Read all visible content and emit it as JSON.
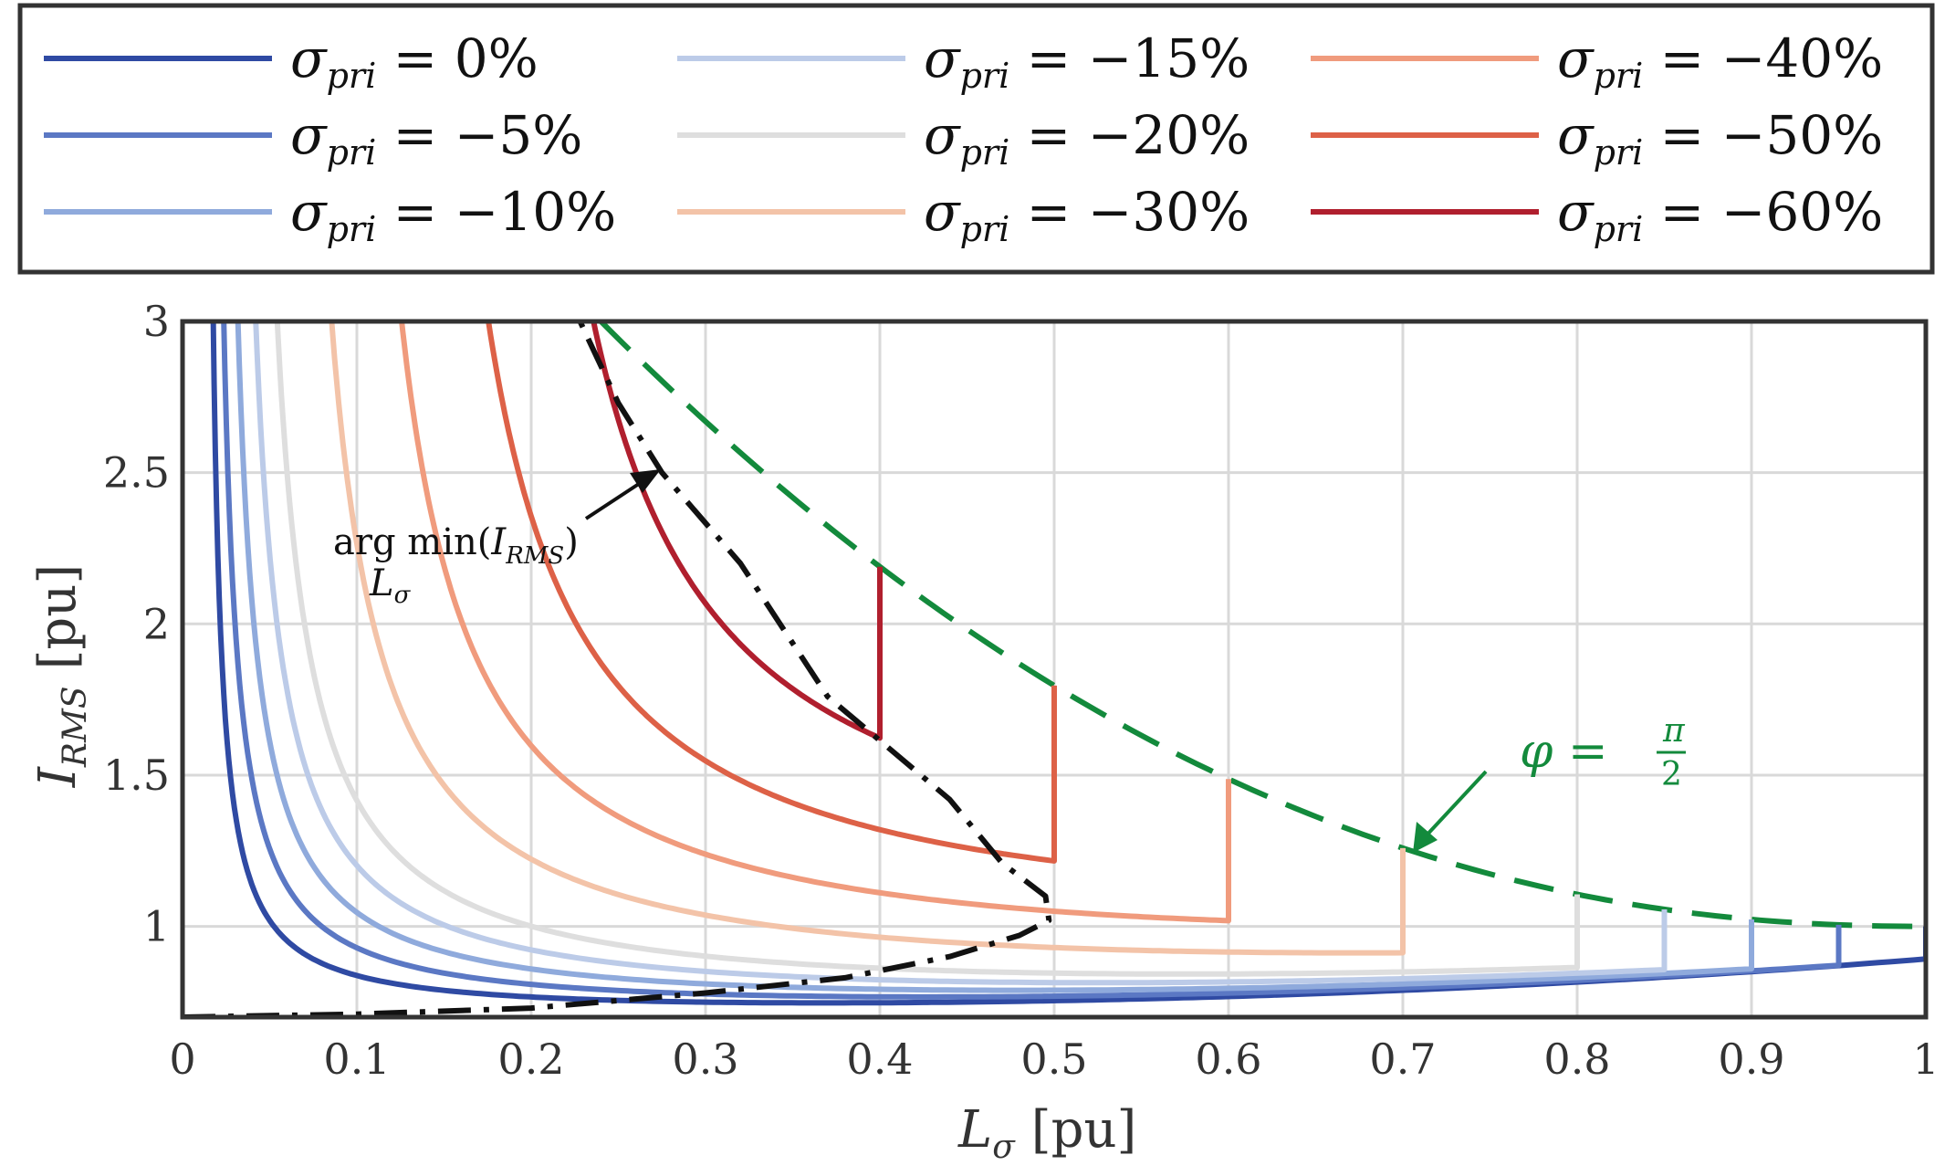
{
  "chart_data": {
    "type": "line",
    "xlabel_symbol": "L",
    "xlabel_sub": "σ",
    "xlabel_unit": "[pu]",
    "ylabel_symbol": "I",
    "ylabel_sub": "RMS",
    "ylabel_unit": "[pu]",
    "xlim": [
      0,
      1
    ],
    "ylim": [
      0.7,
      3
    ],
    "grid": true,
    "legend_position": "top",
    "x_ticks": [
      "0",
      "0.1",
      "0.2",
      "0.3",
      "0.4",
      "0.5",
      "0.6",
      "0.7",
      "0.8",
      "0.9",
      "1"
    ],
    "y_ticks": [
      "1",
      "1.5",
      "2",
      "2.5",
      "3"
    ],
    "series": [
      {
        "name": "σpri = 0%",
        "sigma": 0.0,
        "color": "#2f4aa3",
        "label_sym": "σ",
        "label_sub": "pri",
        "label_val": " = 0%"
      },
      {
        "name": "σpri = −5%",
        "sigma": 0.05,
        "color": "#5b78c4",
        "label_sym": "σ",
        "label_sub": "pri",
        "label_val": " = −5%"
      },
      {
        "name": "σpri = −10%",
        "sigma": 0.1,
        "color": "#8faadc",
        "label_sym": "σ",
        "label_sub": "pri",
        "label_val": " = −10%"
      },
      {
        "name": "σpri = −15%",
        "sigma": 0.15,
        "color": "#bccbe8",
        "label_sym": "σ",
        "label_sub": "pri",
        "label_val": " = −15%"
      },
      {
        "name": "σpri = −20%",
        "sigma": 0.2,
        "color": "#dedede",
        "label_sym": "σ",
        "label_sub": "pri",
        "label_val": " = −20%"
      },
      {
        "name": "σpri = −30%",
        "sigma": 0.3,
        "color": "#f3c3a8",
        "label_sym": "σ",
        "label_sub": "pri",
        "label_val": " = −30%"
      },
      {
        "name": "σpri = −40%",
        "sigma": 0.4,
        "color": "#f09b7d",
        "label_sym": "σ",
        "label_sub": "pri",
        "label_val": " = −40%"
      },
      {
        "name": "σpri = −50%",
        "sigma": 0.5,
        "color": "#dd6147",
        "label_sym": "σ",
        "label_sub": "pri",
        "label_val": " = −50%"
      },
      {
        "name": "σpri = −60%",
        "sigma": 0.6,
        "color": "#b01f2e",
        "label_sym": "σ",
        "label_sub": "pri",
        "label_val": " = −60%"
      }
    ],
    "argmin_curve": {
      "color": "#111111",
      "points": [
        [
          0.0,
          0.7
        ],
        [
          0.1,
          0.71
        ],
        [
          0.2,
          0.73
        ],
        [
          0.3,
          0.78
        ],
        [
          0.38,
          0.83
        ],
        [
          0.44,
          0.9
        ],
        [
          0.48,
          0.97
        ],
        [
          0.497,
          1.02
        ],
        [
          0.495,
          1.1
        ],
        [
          0.47,
          1.21
        ],
        [
          0.44,
          1.42
        ],
        [
          0.37,
          1.76
        ],
        [
          0.32,
          2.2
        ],
        [
          0.275,
          2.5
        ],
        [
          0.25,
          2.73
        ],
        [
          0.228,
          3.0
        ]
      ],
      "label_main": "arg min(",
      "label_sym": "I",
      "label_sym_sub": "RMS",
      "label_close": ")",
      "label_under": "L",
      "label_under_sub": "σ"
    },
    "phi_curve": {
      "color": "#138a3c",
      "label_main": "φ = ",
      "label_num": "π",
      "label_den": "2"
    },
    "colors": {
      "frame": "#333333",
      "grid": "#d9d9d9",
      "legend_border": "#333333"
    }
  }
}
